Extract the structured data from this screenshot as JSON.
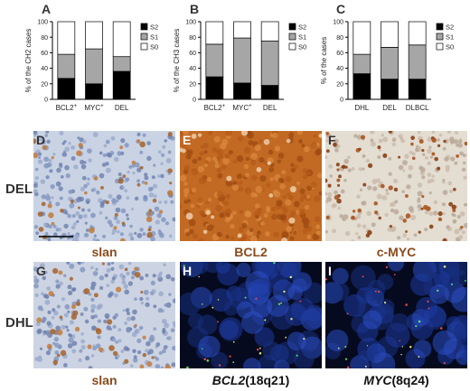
{
  "panel_letters": [
    "A",
    "B",
    "C",
    "D",
    "E",
    "F",
    "G",
    "H",
    "I"
  ],
  "row_labels": {
    "del": "DEL",
    "dhl": "DHL"
  },
  "captions": {
    "d": "slan",
    "e": "BCL2",
    "f": "c-MYC",
    "g": "slan",
    "h_gene": "BCL2",
    "h_locus": "(18q21)",
    "i_gene": "MYC",
    "i_locus": "(8q24)"
  },
  "legend_labels": [
    "S2",
    "S1",
    "S0"
  ],
  "colors": {
    "S2": "#000000",
    "S1": "#a6a6a6",
    "S0": "#ffffff",
    "caption": "#8b4a1c"
  },
  "chart_data": [
    {
      "type": "bar",
      "stacked": true,
      "ylabel": "% of the CH2 cases",
      "categories": [
        "BCL2+",
        "MYC+",
        "DEL"
      ],
      "ylim": [
        0,
        100
      ],
      "series": [
        {
          "name": "S2",
          "values": [
            27,
            20,
            36
          ]
        },
        {
          "name": "S1",
          "values": [
            31,
            45,
            19
          ]
        },
        {
          "name": "S0",
          "values": [
            42,
            35,
            45
          ]
        }
      ]
    },
    {
      "type": "bar",
      "stacked": true,
      "ylabel": "% of the CH3 cases",
      "categories": [
        "BCL2+",
        "MYC+",
        "DEL"
      ],
      "ylim": [
        0,
        100
      ],
      "series": [
        {
          "name": "S2",
          "values": [
            29,
            21,
            18
          ]
        },
        {
          "name": "S1",
          "values": [
            42,
            58,
            57
          ]
        },
        {
          "name": "S0",
          "values": [
            29,
            21,
            25
          ]
        }
      ]
    },
    {
      "type": "bar",
      "stacked": true,
      "ylabel": "% of the cases",
      "categories": [
        "DHL",
        "DEL",
        "DLBCL"
      ],
      "ylim": [
        0,
        100
      ],
      "series": [
        {
          "name": "S2",
          "values": [
            33,
            26,
            26
          ]
        },
        {
          "name": "S1",
          "values": [
            25,
            41,
            44
          ]
        },
        {
          "name": "S0",
          "values": [
            42,
            33,
            30
          ]
        }
      ]
    }
  ]
}
